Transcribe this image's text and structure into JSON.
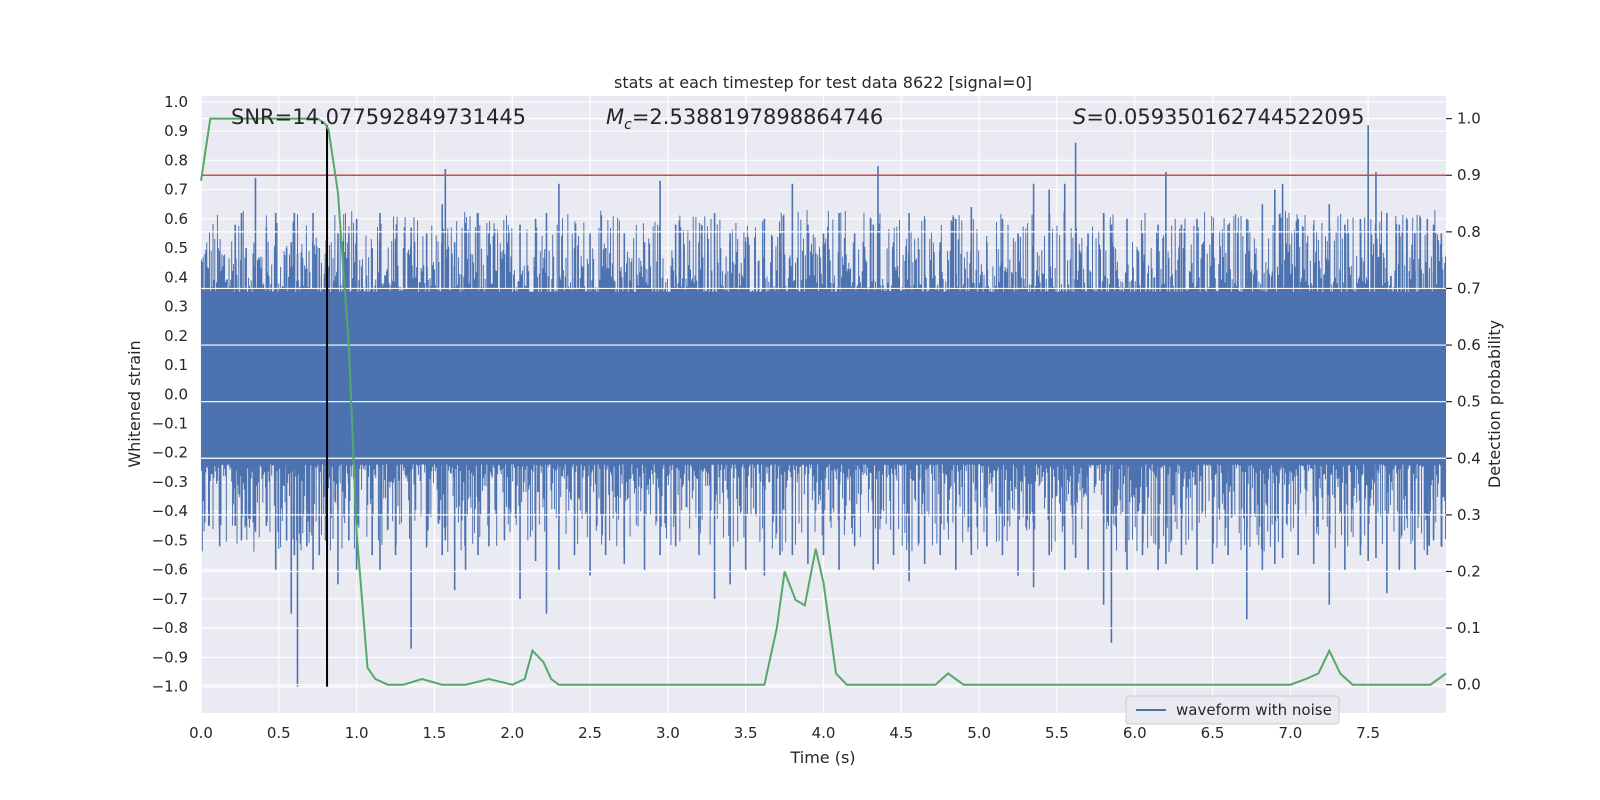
{
  "chart_data": {
    "type": "line",
    "title": "stats at each timestep for test data 8622 [signal=0]",
    "xlabel": "Time (s)",
    "ylabel_left": "Whitened strain",
    "ylabel_right": "Detection probability",
    "xlim": [
      0.0,
      8.0
    ],
    "ylim_left": [
      -1.09,
      1.02
    ],
    "ylim_right": [
      -0.05,
      1.04
    ],
    "x_ticks": [
      "0.0",
      "0.5",
      "1.0",
      "1.5",
      "2.0",
      "2.5",
      "3.0",
      "3.5",
      "4.0",
      "4.5",
      "5.0",
      "5.5",
      "6.0",
      "6.5",
      "7.0",
      "7.5"
    ],
    "y_left_ticks": [
      "1.0",
      "0.9",
      "0.8",
      "0.7",
      "0.6",
      "0.5",
      "0.4",
      "0.3",
      "0.2",
      "0.1",
      "0.0",
      "−0.1",
      "−0.2",
      "−0.3",
      "−0.4",
      "−0.5",
      "−0.6",
      "−0.7",
      "−0.8",
      "−0.9",
      "−1.0"
    ],
    "y_right_ticks": [
      "1.0",
      "0.9",
      "0.8",
      "0.7",
      "0.6",
      "0.5",
      "0.4",
      "0.3",
      "0.2",
      "0.1",
      "0.0"
    ],
    "annotations": {
      "snr": "SNR=14.077592849731445",
      "mc_symbol": "M",
      "mc_sub": "c",
      "mc_value": "=2.5388197898864746",
      "s_symbol": "S",
      "s_value": "=0.059350162744522095"
    },
    "legend": {
      "label": "waveform with noise",
      "position": "lower right"
    },
    "threshold_right": 0.9,
    "marker_time": 0.81,
    "waveform": {
      "name": "waveform with noise",
      "envelope_upper": 0.35,
      "envelope_lower": -0.24,
      "spikes": [
        [
          0.05,
          0.43,
          -0.45
        ],
        [
          0.12,
          0.49,
          -0.52
        ],
        [
          0.22,
          0.58,
          -0.45
        ],
        [
          0.26,
          0.62,
          -0.5
        ],
        [
          0.29,
          0.5,
          -0.45
        ],
        [
          0.35,
          0.74,
          -0.47
        ],
        [
          0.42,
          0.57,
          -0.45
        ],
        [
          0.48,
          0.62,
          -0.6
        ],
        [
          0.55,
          0.5,
          -0.5
        ],
        [
          0.58,
          0.52,
          -0.75
        ],
        [
          0.6,
          0.62,
          -0.55
        ],
        [
          0.62,
          0.48,
          -1.0
        ],
        [
          0.68,
          0.43,
          -0.52
        ],
        [
          0.72,
          0.62,
          -0.6
        ],
        [
          0.76,
          0.5,
          -0.55
        ],
        [
          0.8,
          0.48,
          -0.5
        ],
        [
          0.88,
          0.55,
          -0.65
        ],
        [
          0.95,
          0.55,
          -0.5
        ],
        [
          1.0,
          0.6,
          -0.6
        ],
        [
          1.1,
          0.5,
          -0.55
        ],
        [
          1.15,
          0.62,
          -0.6
        ],
        [
          1.25,
          0.52,
          -0.55
        ],
        [
          1.35,
          0.57,
          -0.87
        ],
        [
          1.45,
          0.55,
          -0.52
        ],
        [
          1.55,
          0.65,
          -0.55
        ],
        [
          1.57,
          0.77,
          -0.5
        ],
        [
          1.63,
          0.52,
          -0.67
        ],
        [
          1.7,
          0.5,
          -0.6
        ],
        [
          1.78,
          0.62,
          -0.55
        ],
        [
          1.85,
          0.55,
          -0.52
        ],
        [
          1.95,
          0.48,
          -0.5
        ],
        [
          2.05,
          0.58,
          -0.7
        ],
        [
          2.15,
          0.6,
          -0.57
        ],
        [
          2.22,
          0.62,
          -0.75
        ],
        [
          2.3,
          0.72,
          -0.6
        ],
        [
          2.4,
          0.5,
          -0.55
        ],
        [
          2.5,
          0.55,
          -0.62
        ],
        [
          2.6,
          0.5,
          -0.55
        ],
        [
          2.72,
          0.55,
          -0.58
        ],
        [
          2.85,
          0.52,
          -0.6
        ],
        [
          2.95,
          0.73,
          -0.55
        ],
        [
          3.05,
          0.58,
          -0.52
        ],
        [
          3.2,
          0.52,
          -0.55
        ],
        [
          3.3,
          0.62,
          -0.7
        ],
        [
          3.4,
          0.55,
          -0.65
        ],
        [
          3.5,
          0.52,
          -0.6
        ],
        [
          3.62,
          0.6,
          -0.62
        ],
        [
          3.72,
          0.55,
          -0.55
        ],
        [
          3.8,
          0.72,
          -0.55
        ],
        [
          3.9,
          0.58,
          -0.58
        ],
        [
          4.0,
          0.55,
          -0.55
        ],
        [
          4.1,
          0.62,
          -0.6
        ],
        [
          4.2,
          0.55,
          -0.52
        ],
        [
          4.32,
          0.58,
          -0.6
        ],
        [
          4.35,
          0.78,
          -0.58
        ],
        [
          4.45,
          0.52,
          -0.55
        ],
        [
          4.55,
          0.62,
          -0.64
        ],
        [
          4.65,
          0.6,
          -0.58
        ],
        [
          4.75,
          0.52,
          -0.55
        ],
        [
          4.85,
          0.6,
          -0.6
        ],
        [
          4.95,
          0.64,
          -0.55
        ],
        [
          5.05,
          0.52,
          -0.52
        ],
        [
          5.15,
          0.6,
          -0.55
        ],
        [
          5.25,
          0.55,
          -0.62
        ],
        [
          5.35,
          0.72,
          -0.66
        ],
        [
          5.45,
          0.7,
          -0.55
        ],
        [
          5.55,
          0.72,
          -0.6
        ],
        [
          5.62,
          0.86,
          -0.56
        ],
        [
          5.7,
          0.55,
          -0.6
        ],
        [
          5.8,
          0.62,
          -0.72
        ],
        [
          5.85,
          0.58,
          -0.85
        ],
        [
          5.95,
          0.6,
          -0.6
        ],
        [
          6.05,
          0.55,
          -0.55
        ],
        [
          6.15,
          0.58,
          -0.6
        ],
        [
          6.2,
          0.76,
          -0.58
        ],
        [
          6.3,
          0.58,
          -0.55
        ],
        [
          6.4,
          0.6,
          -0.6
        ],
        [
          6.5,
          0.55,
          -0.58
        ],
        [
          6.6,
          0.58,
          -0.55
        ],
        [
          6.72,
          0.6,
          -0.77
        ],
        [
          6.82,
          0.65,
          -0.6
        ],
        [
          6.9,
          0.7,
          -0.58
        ],
        [
          6.95,
          0.72,
          -0.56
        ],
        [
          7.05,
          0.6,
          -0.55
        ],
        [
          7.15,
          0.58,
          -0.58
        ],
        [
          7.25,
          0.65,
          -0.72
        ],
        [
          7.35,
          0.58,
          -0.6
        ],
        [
          7.45,
          0.6,
          -0.55
        ],
        [
          7.5,
          0.92,
          -0.57
        ],
        [
          7.55,
          0.76,
          -0.56
        ],
        [
          7.62,
          0.62,
          -0.68
        ],
        [
          7.7,
          0.58,
          -0.6
        ],
        [
          7.8,
          0.55,
          -0.6
        ],
        [
          7.88,
          0.6,
          -0.55
        ],
        [
          7.92,
          0.58,
          -0.5
        ],
        [
          7.97,
          0.55,
          -0.52
        ]
      ]
    },
    "probability": {
      "name": "detection probability",
      "x": [
        0.0,
        0.06,
        0.1,
        0.2,
        0.3,
        0.4,
        0.5,
        0.6,
        0.7,
        0.75,
        0.8,
        0.82,
        0.88,
        0.95,
        1.0,
        1.07,
        1.12,
        1.2,
        1.3,
        1.42,
        1.55,
        1.7,
        1.85,
        2.0,
        2.08,
        2.13,
        2.2,
        2.25,
        2.3,
        2.4,
        2.5,
        2.7,
        3.0,
        3.3,
        3.5,
        3.62,
        3.7,
        3.75,
        3.82,
        3.88,
        3.95,
        4.0,
        4.08,
        4.15,
        4.3,
        4.5,
        4.6,
        4.72,
        4.8,
        4.9,
        5.1,
        5.5,
        6.0,
        6.5,
        7.0,
        7.1,
        7.18,
        7.25,
        7.32,
        7.4,
        7.5,
        7.7,
        7.9,
        8.0
      ],
      "y": [
        0.89,
        1.0,
        1.0,
        1.0,
        1.0,
        1.0,
        1.0,
        1.0,
        1.0,
        1.0,
        0.99,
        0.98,
        0.87,
        0.6,
        0.27,
        0.03,
        0.01,
        0.0,
        0.0,
        0.01,
        0.0,
        0.0,
        0.01,
        0.0,
        0.01,
        0.06,
        0.04,
        0.01,
        0.0,
        0.0,
        0.0,
        0.0,
        0.0,
        0.0,
        0.0,
        0.0,
        0.1,
        0.2,
        0.15,
        0.14,
        0.24,
        0.18,
        0.02,
        0.0,
        0.0,
        0.0,
        0.0,
        0.0,
        0.02,
        0.0,
        0.0,
        0.0,
        0.0,
        0.0,
        0.0,
        0.01,
        0.02,
        0.06,
        0.02,
        0.0,
        0.0,
        0.0,
        0.0,
        0.02
      ]
    },
    "colors": {
      "waveform": "#4c72b0",
      "probability": "#55a868",
      "threshold": "#c44e52",
      "marker": "#000000",
      "background": "#eaeaf2",
      "grid": "#ffffff"
    }
  }
}
